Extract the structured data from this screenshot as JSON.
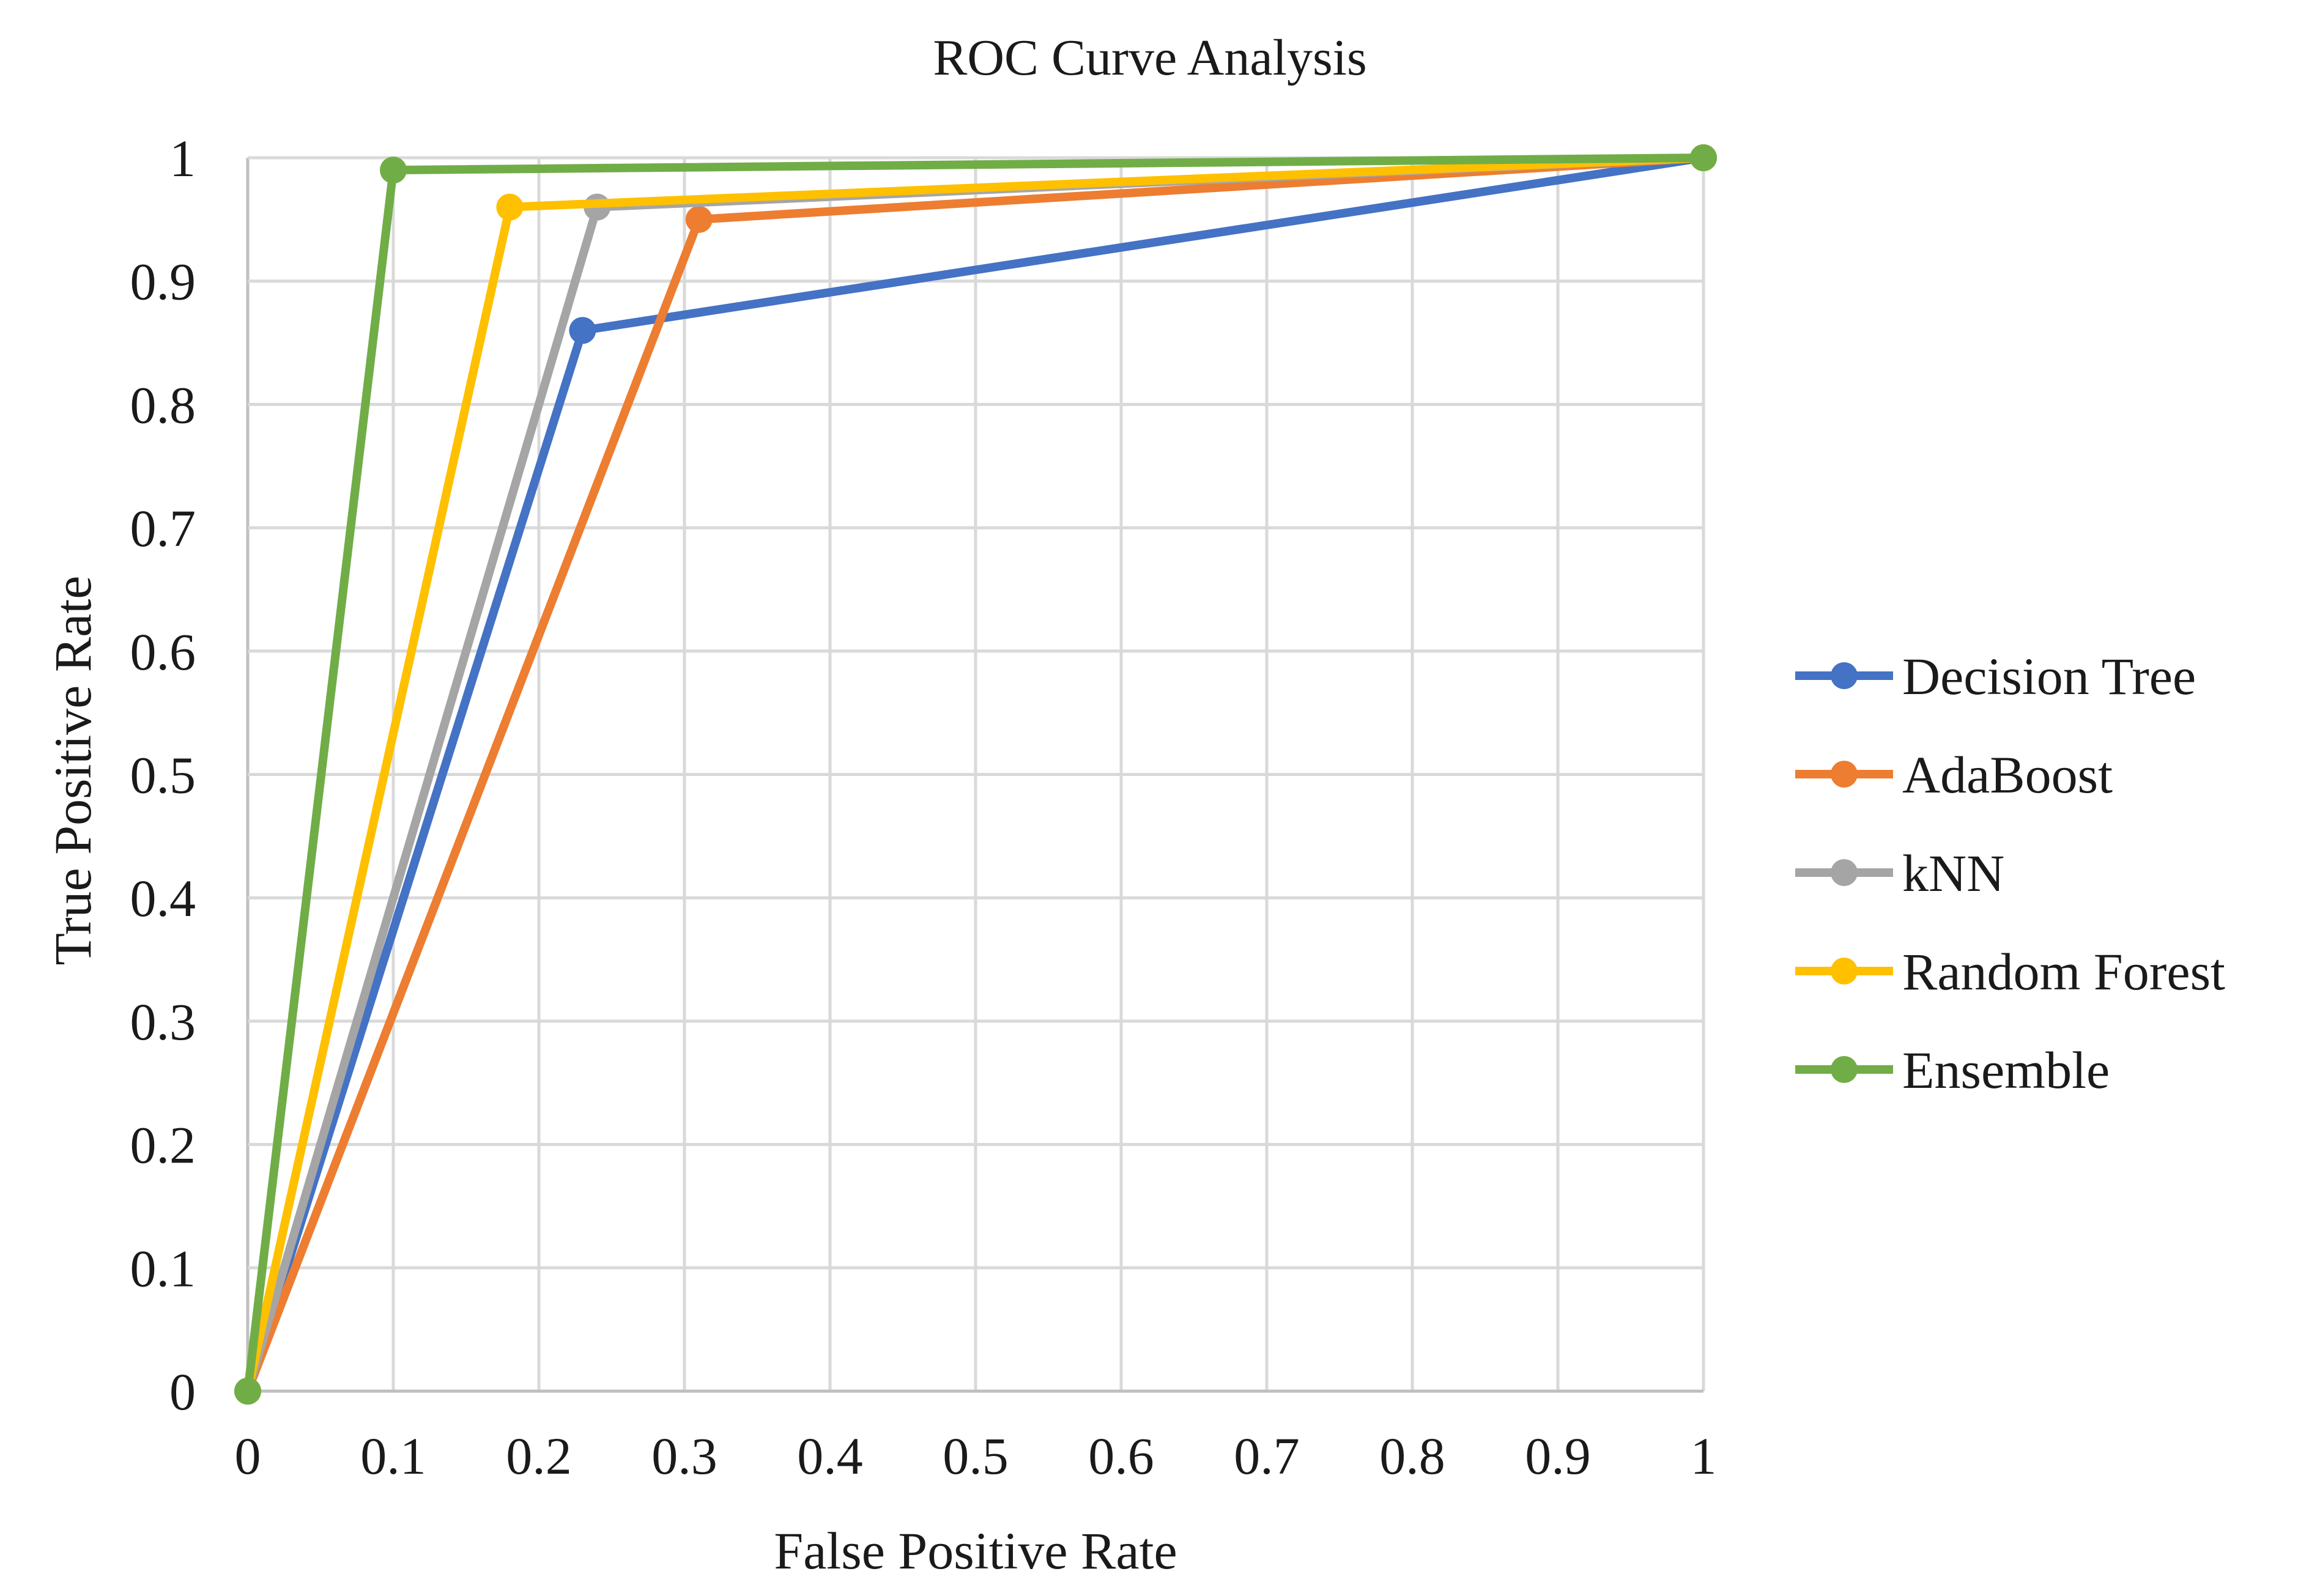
{
  "chart_data": {
    "type": "line",
    "title": "ROC Curve Analysis",
    "xlabel": "False Positive Rate",
    "ylabel": "True Positive Rate",
    "xlim": [
      0,
      1
    ],
    "ylim": [
      0,
      1
    ],
    "grid": true,
    "legend_position": "right",
    "x_ticks": [
      "0",
      "0.1",
      "0.2",
      "0.3",
      "0.4",
      "0.5",
      "0.6",
      "0.7",
      "0.8",
      "0.9",
      "1"
    ],
    "y_ticks": [
      "0",
      "0.1",
      "0.2",
      "0.3",
      "0.4",
      "0.5",
      "0.6",
      "0.7",
      "0.8",
      "0.9",
      "1"
    ],
    "series": [
      {
        "name": "Decision Tree",
        "color": "#4472C4",
        "x": [
          0,
          0.23,
          1
        ],
        "y": [
          0,
          0.86,
          1
        ]
      },
      {
        "name": "AdaBoost",
        "color": "#ED7D31",
        "x": [
          0,
          0.31,
          1
        ],
        "y": [
          0,
          0.95,
          1
        ]
      },
      {
        "name": "kNN",
        "color": "#A5A5A5",
        "x": [
          0,
          0.24,
          1
        ],
        "y": [
          0,
          0.96,
          1
        ]
      },
      {
        "name": "Random Forest",
        "color": "#FFC000",
        "x": [
          0,
          0.18,
          1
        ],
        "y": [
          0,
          0.96,
          1
        ]
      },
      {
        "name": "Ensemble",
        "color": "#70AD47",
        "x": [
          0,
          0.1,
          1
        ],
        "y": [
          0,
          0.99,
          1
        ]
      }
    ]
  }
}
